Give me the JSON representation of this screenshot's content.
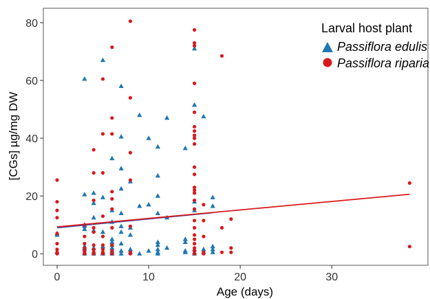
{
  "chart_data": {
    "type": "scatter",
    "xlabel": "Age (days)",
    "ylabel": "[CGs] µg/mg DW",
    "xlim": [
      -1.5,
      40.5
    ],
    "ylim": [
      -4,
      85
    ],
    "x_ticks": [
      0,
      10,
      20,
      30
    ],
    "y_ticks": [
      0,
      20,
      40,
      60,
      80
    ],
    "x_tick_labels": [
      "0",
      "10",
      "20",
      "30"
    ],
    "y_tick_labels": [
      "0",
      "20",
      "40",
      "60",
      "80"
    ],
    "grid": false,
    "legend": {
      "title": "Larval host plant",
      "placement": "top-right",
      "entries": [
        {
          "label": "Passiflora edulis",
          "marker": "triangle",
          "color": "#1f77b4"
        },
        {
          "label": "Passiflora riparia",
          "marker": "circle",
          "color": "#d7191c"
        }
      ]
    },
    "series": [
      {
        "name": "Passiflora edulis",
        "marker": "triangle",
        "color": "#1f77b4",
        "points": [
          [
            0,
            7
          ],
          [
            0,
            6.5
          ],
          [
            0,
            0.5
          ],
          [
            3,
            60.5
          ],
          [
            3,
            20.5
          ],
          [
            3,
            10
          ],
          [
            3,
            9.5
          ],
          [
            3,
            8.5
          ],
          [
            3,
            2.5
          ],
          [
            3,
            2
          ],
          [
            3,
            1.5
          ],
          [
            3,
            0.5
          ],
          [
            3,
            0
          ],
          [
            4,
            21
          ],
          [
            4,
            17.5
          ],
          [
            4,
            12.5
          ],
          [
            4,
            8
          ],
          [
            4,
            2
          ],
          [
            4,
            0.5
          ],
          [
            4,
            0
          ],
          [
            5,
            67
          ],
          [
            5,
            19.5
          ],
          [
            5,
            7.5
          ],
          [
            5,
            2.5
          ],
          [
            5,
            0.5
          ],
          [
            5,
            0
          ],
          [
            6,
            33
          ],
          [
            6,
            15
          ],
          [
            6,
            11
          ],
          [
            6,
            5
          ],
          [
            6,
            4
          ],
          [
            6,
            3
          ],
          [
            6,
            2
          ],
          [
            6,
            1
          ],
          [
            6,
            0.5
          ],
          [
            6,
            0
          ],
          [
            7,
            58
          ],
          [
            7,
            40.5
          ],
          [
            7,
            29.5
          ],
          [
            7,
            22.5
          ],
          [
            7,
            14
          ],
          [
            7,
            9.5
          ],
          [
            7,
            7.5
          ],
          [
            7,
            3.5
          ],
          [
            7,
            1
          ],
          [
            7,
            0
          ],
          [
            8,
            25
          ],
          [
            8,
            9
          ],
          [
            8,
            6.5
          ],
          [
            8,
            1.5
          ],
          [
            8,
            0.5
          ],
          [
            9,
            48
          ],
          [
            9,
            16.5
          ],
          [
            9,
            0
          ],
          [
            10,
            40
          ],
          [
            10,
            17
          ],
          [
            10,
            1
          ],
          [
            11,
            37
          ],
          [
            11,
            27
          ],
          [
            11,
            20
          ],
          [
            11,
            14
          ],
          [
            11,
            4
          ],
          [
            11,
            3
          ],
          [
            11,
            1.5
          ],
          [
            11,
            0.5
          ],
          [
            11,
            0
          ],
          [
            12,
            47
          ],
          [
            12,
            12.5
          ],
          [
            12,
            2
          ],
          [
            14,
            36.5
          ],
          [
            14,
            5
          ],
          [
            14,
            4
          ],
          [
            14,
            1
          ],
          [
            14,
            0.5
          ],
          [
            15,
            71
          ],
          [
            15,
            51.5
          ],
          [
            15,
            18
          ],
          [
            15,
            15
          ],
          [
            15,
            1.5
          ],
          [
            15,
            0.5
          ],
          [
            15,
            0
          ],
          [
            16,
            47.5
          ],
          [
            16,
            1.5
          ],
          [
            16,
            0.5
          ],
          [
            17,
            19.5
          ],
          [
            17,
            16.5
          ],
          [
            17,
            2.5
          ],
          [
            17,
            1.5
          ],
          [
            17,
            0.5
          ]
        ]
      },
      {
        "name": "Passiflora riparia",
        "marker": "circle",
        "color": "#d7191c",
        "points": [
          [
            0,
            25.5
          ],
          [
            0,
            18
          ],
          [
            0,
            15
          ],
          [
            0,
            12.5
          ],
          [
            0,
            7
          ],
          [
            0,
            3.5
          ],
          [
            0,
            1.5
          ],
          [
            0,
            0.5
          ],
          [
            0,
            0
          ],
          [
            3,
            10
          ],
          [
            3,
            6
          ],
          [
            3,
            3.5
          ],
          [
            3,
            2
          ],
          [
            3,
            1
          ],
          [
            3,
            0.5
          ],
          [
            3,
            0
          ],
          [
            4,
            36
          ],
          [
            4,
            28
          ],
          [
            4,
            18.5
          ],
          [
            4,
            9
          ],
          [
            4,
            7.5
          ],
          [
            4,
            3
          ],
          [
            4,
            1.5
          ],
          [
            4,
            0.5
          ],
          [
            4,
            0
          ],
          [
            5,
            60.5
          ],
          [
            5,
            41.5
          ],
          [
            5,
            28
          ],
          [
            5,
            13
          ],
          [
            5,
            6
          ],
          [
            5,
            3
          ],
          [
            5,
            1.5
          ],
          [
            5,
            0.5
          ],
          [
            5,
            0
          ],
          [
            6,
            71.5
          ],
          [
            6,
            47
          ],
          [
            6,
            41.5
          ],
          [
            6,
            21.5
          ],
          [
            6,
            19
          ],
          [
            6,
            15.5
          ],
          [
            6,
            9
          ],
          [
            6,
            3
          ],
          [
            6,
            1
          ],
          [
            6,
            0
          ],
          [
            8,
            80.5
          ],
          [
            8,
            54
          ],
          [
            8,
            35
          ],
          [
            8,
            25.5
          ],
          [
            8,
            9.5
          ],
          [
            8,
            0.5
          ],
          [
            8,
            0
          ],
          [
            15,
            77.5
          ],
          [
            15,
            73
          ],
          [
            15,
            72
          ],
          [
            15,
            59
          ],
          [
            15,
            49
          ],
          [
            15,
            44
          ],
          [
            15,
            42.5
          ],
          [
            15,
            41
          ],
          [
            15,
            40
          ],
          [
            15,
            38
          ],
          [
            15,
            30
          ],
          [
            15,
            27.5
          ],
          [
            15,
            23
          ],
          [
            15,
            22
          ],
          [
            15,
            21
          ],
          [
            15,
            18.5
          ],
          [
            15,
            15.5
          ],
          [
            15,
            11.5
          ],
          [
            15,
            9
          ],
          [
            15,
            6.5
          ],
          [
            15,
            5
          ],
          [
            15,
            3.5
          ],
          [
            15,
            2
          ],
          [
            15,
            1
          ],
          [
            15,
            0
          ],
          [
            16,
            17
          ],
          [
            16,
            11.5
          ],
          [
            16,
            6
          ],
          [
            16,
            0.5
          ],
          [
            16,
            0
          ],
          [
            18,
            68.5
          ],
          [
            18,
            9
          ],
          [
            18,
            0.5
          ],
          [
            19,
            12
          ],
          [
            19,
            2
          ],
          [
            19,
            0.5
          ],
          [
            38.5,
            24.5
          ],
          [
            38.5,
            2.5
          ]
        ]
      }
    ],
    "fit_lines": [
      {
        "name": "Passiflora edulis",
        "color": "#3b4aa8",
        "x": [
          0,
          17
        ],
        "y": [
          9.0,
          14.2
        ]
      },
      {
        "name": "Passiflora riparia",
        "color": "#d7191c",
        "x": [
          0,
          38.5
        ],
        "y": [
          9.3,
          20.6
        ]
      }
    ]
  }
}
